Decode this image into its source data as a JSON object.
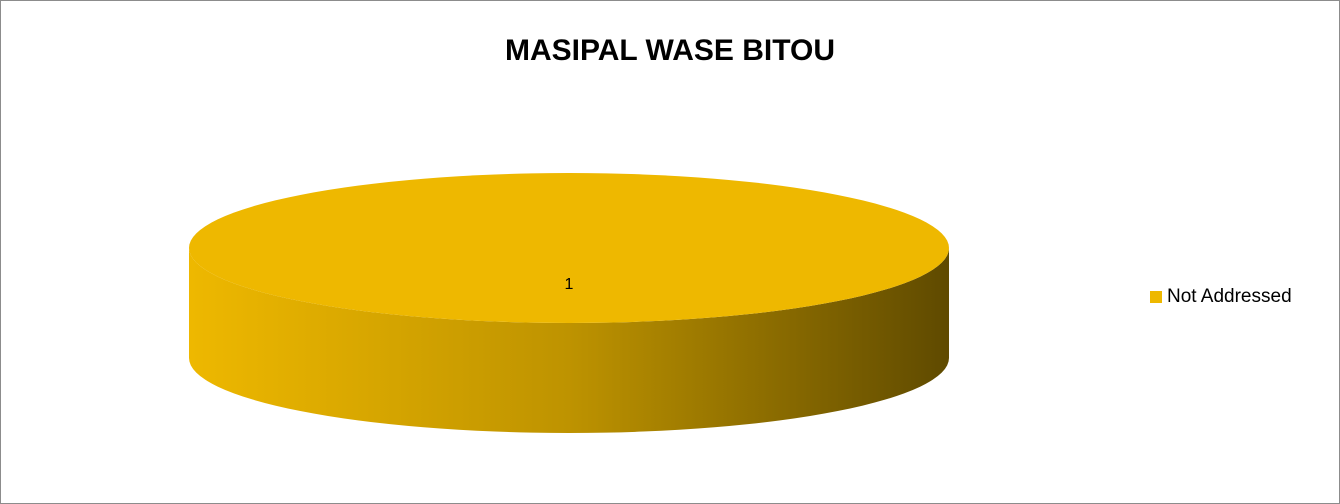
{
  "chart_data": {
    "type": "pie",
    "title": "MASIPAL WASE BITOU",
    "categories": [
      "Not Addressed"
    ],
    "values": [
      1
    ],
    "series": [
      {
        "name": "Not Addressed",
        "color": "#eeb800",
        "values": [
          1
        ]
      }
    ],
    "legend": "right"
  }
}
